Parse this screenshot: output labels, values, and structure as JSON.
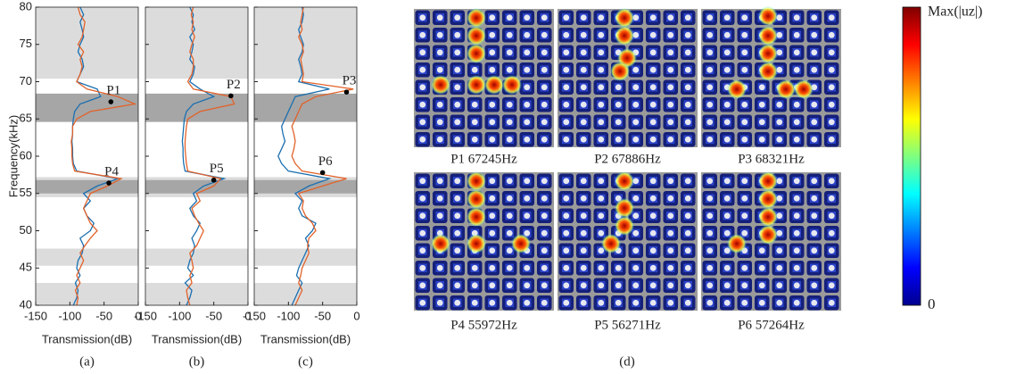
{
  "chart_data": [
    {
      "type": "line",
      "caption": "(a)",
      "xlabel": "Transmission(dB)",
      "ylabel": "Frequency(kHz)",
      "show_ytick_labels": true,
      "xlim": [
        -150,
        0
      ],
      "xticks": [
        -150,
        -100,
        -50,
        0
      ],
      "ylim": [
        40,
        80
      ],
      "yticks": [
        40,
        45,
        50,
        55,
        60,
        65,
        70,
        75,
        80
      ],
      "y": [
        40,
        41,
        42,
        43,
        44,
        45,
        46,
        47,
        48,
        49,
        50,
        51,
        52,
        53,
        54,
        55,
        56,
        57,
        58,
        59,
        60,
        61,
        62,
        63,
        64,
        65,
        66,
        67,
        68,
        69,
        70,
        71,
        72,
        73,
        74,
        75,
        76,
        77,
        78,
        79,
        80
      ],
      "series": [
        {
          "color": "#1a6fb0",
          "values": [
            -95,
            -90,
            -88,
            -92,
            -85,
            -90,
            -88,
            -82,
            -80,
            -85,
            -70,
            -65,
            -75,
            -80,
            -70,
            -80,
            -60,
            -30,
            -90,
            -95,
            -96,
            -96,
            -97,
            -96,
            -96,
            -95,
            -93,
            -85,
            -55,
            -60,
            -90,
            -85,
            -80,
            -82,
            -88,
            -85,
            -80,
            -82,
            -85,
            -80,
            -85
          ]
        },
        {
          "color": "#e2622a",
          "values": [
            -90,
            -88,
            -92,
            -85,
            -90,
            -85,
            -80,
            -85,
            -78,
            -70,
            -60,
            -70,
            -75,
            -80,
            -75,
            -70,
            -45,
            -25,
            -93,
            -96,
            -97,
            -97,
            -98,
            -96,
            -96,
            -90,
            -70,
            -5,
            -30,
            -75,
            -90,
            -85,
            -82,
            -85,
            -80,
            -88,
            -82,
            -80,
            -78,
            -85,
            -88
          ]
        }
      ],
      "bands": [
        {
          "range": [
            40,
            43
          ],
          "color": "#dcdcdc"
        },
        {
          "range": [
            45.3,
            47.6
          ],
          "color": "#dcdcdc"
        },
        {
          "range": [
            54.5,
            57.2
          ],
          "color": "#dcdcdc"
        },
        {
          "range": [
            70.4,
            80
          ],
          "color": "#dcdcdc"
        },
        {
          "range": [
            55,
            56.8
          ],
          "color": "#a6a6a6"
        },
        {
          "range": [
            64.6,
            68.4
          ],
          "color": "#a6a6a6"
        }
      ],
      "annotations": [
        {
          "label": "P1",
          "x": -40,
          "y": 67.3
        },
        {
          "label": "P4",
          "x": -43,
          "y": 56.4
        }
      ]
    },
    {
      "type": "line",
      "caption": "(b)",
      "xlabel": "Transmission(dB)",
      "show_ytick_labels": false,
      "xlim": [
        -150,
        0
      ],
      "xticks": [
        -150,
        -100,
        -50,
        0
      ],
      "ylim": [
        40,
        80
      ],
      "yticks": [
        40,
        45,
        50,
        55,
        60,
        65,
        70,
        75,
        80
      ],
      "y": [
        40,
        41,
        42,
        43,
        44,
        45,
        46,
        47,
        48,
        49,
        50,
        51,
        52,
        53,
        54,
        55,
        56,
        57,
        58,
        59,
        60,
        61,
        62,
        63,
        64,
        65,
        66,
        67,
        68,
        69,
        70,
        71,
        72,
        73,
        74,
        75,
        76,
        77,
        78,
        79,
        80
      ],
      "series": [
        {
          "color": "#1a6fb0",
          "values": [
            -90,
            -85,
            -82,
            -92,
            -80,
            -88,
            -85,
            -80,
            -78,
            -82,
            -75,
            -70,
            -80,
            -85,
            -75,
            -80,
            -65,
            -35,
            -92,
            -94,
            -95,
            -95,
            -96,
            -95,
            -94,
            -93,
            -90,
            -80,
            -50,
            -70,
            -85,
            -80,
            -78,
            -85,
            -82,
            -80,
            -85,
            -78,
            -82,
            -80,
            -85
          ]
        },
        {
          "color": "#e2622a",
          "values": [
            -85,
            -88,
            -90,
            -82,
            -85,
            -80,
            -82,
            -85,
            -75,
            -70,
            -65,
            -72,
            -78,
            -82,
            -70,
            -75,
            -50,
            -40,
            -88,
            -90,
            -91,
            -92,
            -92,
            -91,
            -90,
            -88,
            -70,
            -20,
            -25,
            -80,
            -88,
            -82,
            -80,
            -80,
            -85,
            -82,
            -78,
            -82,
            -80,
            -83,
            -80
          ]
        }
      ],
      "bands": [
        {
          "range": [
            40,
            43
          ],
          "color": "#dcdcdc"
        },
        {
          "range": [
            45.3,
            47.6
          ],
          "color": "#dcdcdc"
        },
        {
          "range": [
            54.5,
            57.2
          ],
          "color": "#dcdcdc"
        },
        {
          "range": [
            70.4,
            80
          ],
          "color": "#dcdcdc"
        },
        {
          "range": [
            55,
            56.8
          ],
          "color": "#a6a6a6"
        },
        {
          "range": [
            64.6,
            68.4
          ],
          "color": "#a6a6a6"
        }
      ],
      "annotations": [
        {
          "label": "P2",
          "x": -25,
          "y": 68.1
        },
        {
          "label": "P5",
          "x": -50,
          "y": 56.8
        }
      ]
    },
    {
      "type": "line",
      "caption": "(c)",
      "xlabel": "Transmission(dB)",
      "show_ytick_labels": false,
      "xlim": [
        -150,
        0
      ],
      "xticks": [
        -150,
        -100,
        -50,
        0
      ],
      "ylim": [
        40,
        80
      ],
      "yticks": [
        40,
        45,
        50,
        55,
        60,
        65,
        70,
        75,
        80
      ],
      "y": [
        40,
        41,
        42,
        43,
        44,
        45,
        46,
        47,
        48,
        49,
        50,
        51,
        52,
        53,
        54,
        55,
        56,
        57,
        58,
        59,
        60,
        61,
        62,
        63,
        64,
        65,
        66,
        67,
        68,
        69,
        70,
        71,
        72,
        73,
        74,
        75,
        76,
        77,
        78,
        79,
        80
      ],
      "series": [
        {
          "color": "#1a6fb0",
          "values": [
            -95,
            -90,
            -85,
            -80,
            -88,
            -85,
            -80,
            -75,
            -70,
            -75,
            -65,
            -60,
            -80,
            -85,
            -80,
            -90,
            -70,
            -40,
            -100,
            -110,
            -115,
            -110,
            -105,
            -108,
            -110,
            -105,
            -100,
            -95,
            -90,
            -40,
            -85,
            -80,
            -82,
            -85,
            -80,
            -78,
            -82,
            -85,
            -80,
            -78,
            -80
          ]
        },
        {
          "color": "#e2622a",
          "values": [
            -90,
            -85,
            -80,
            -85,
            -82,
            -80,
            -75,
            -70,
            -72,
            -70,
            -60,
            -65,
            -75,
            -80,
            -78,
            -85,
            -50,
            -15,
            -80,
            -90,
            -95,
            -92,
            -90,
            -92,
            -95,
            -90,
            -85,
            -80,
            -60,
            -5,
            -80,
            -78,
            -80,
            -82,
            -78,
            -80,
            -85,
            -80,
            -82,
            -80,
            -78
          ]
        }
      ],
      "bands": [
        {
          "range": [
            40,
            43
          ],
          "color": "#dcdcdc"
        },
        {
          "range": [
            45.3,
            47.6
          ],
          "color": "#dcdcdc"
        },
        {
          "range": [
            54.5,
            57.2
          ],
          "color": "#dcdcdc"
        },
        {
          "range": [
            70.4,
            80
          ],
          "color": "#dcdcdc"
        },
        {
          "range": [
            55,
            56.8
          ],
          "color": "#a6a6a6"
        },
        {
          "range": [
            64.6,
            68.4
          ],
          "color": "#a6a6a6"
        }
      ],
      "annotations": [
        {
          "label": "P3",
          "x": -15,
          "y": 68.6
        },
        {
          "label": "P6",
          "x": -50,
          "y": 57.8
        }
      ]
    }
  ],
  "panel_d": {
    "caption": "(d)",
    "modes": [
      "P1 67245Hz",
      "P2 67886Hz",
      "P3 68321Hz",
      "P4 55972Hz",
      "P5 56271Hz",
      "P6 57264Hz"
    ],
    "colorbar": {
      "max_label": "Max(|uz|)",
      "min_label": "0"
    }
  }
}
